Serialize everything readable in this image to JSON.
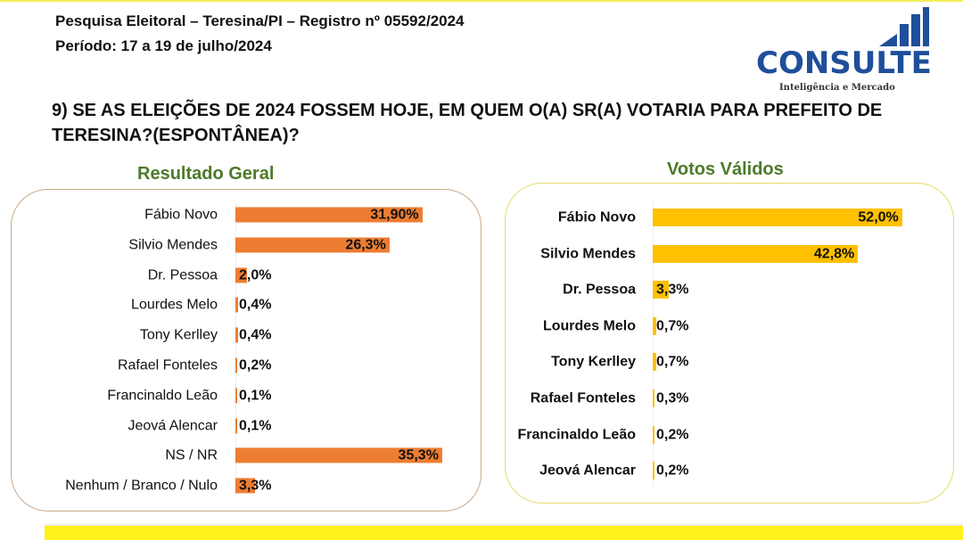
{
  "header": {
    "line1": "Pesquisa Eleitoral – Teresina/PI  – Registro nº 05592/2024",
    "line2": "Período: 17 a 19 de julho/2024"
  },
  "logo": {
    "name": "CONSULTE",
    "tagline": "Inteligência e Mercado"
  },
  "question": "9) SE AS ELEIÇÕES DE 2024 FOSSEM HOJE, EM QUEM O(A) SR(A) VOTARIA PARA PREFEITO DE TERESINA?(ESPONTÂNEA)?",
  "colors": {
    "general": "#ed7d31",
    "valid": "#ffc000",
    "title_green": "#4d7a2a"
  },
  "chart_data": [
    {
      "type": "bar",
      "orientation": "horizontal",
      "title": "Resultado Geral",
      "categories": [
        "Fábio Novo",
        "Silvio Mendes",
        "Dr. Pessoa",
        "Lourdes Melo",
        "Tony Kerlley",
        "Rafael Fonteles",
        "Francinaldo Leão",
        "Jeová Alencar",
        "NS / NR",
        "Nenhum / Branco / Nulo"
      ],
      "values": [
        31.9,
        26.3,
        2.0,
        0.4,
        0.4,
        0.2,
        0.1,
        0.1,
        35.3,
        3.3
      ],
      "labels": [
        "31,90%",
        "26,3%",
        "2,0%",
        "0,4%",
        "0,4%",
        "0,2%",
        "0,1%",
        "0,1%",
        "35,3%",
        "3,3%"
      ],
      "unit": "%"
    },
    {
      "type": "bar",
      "orientation": "horizontal",
      "title": "Votos Válidos",
      "categories": [
        "Fábio Novo",
        "Silvio Mendes",
        "Dr. Pessoa",
        "Lourdes Melo",
        "Tony Kerlley",
        "Rafael Fonteles",
        "Francinaldo Leão",
        "Jeová Alencar"
      ],
      "values": [
        52.0,
        42.8,
        3.3,
        0.7,
        0.7,
        0.3,
        0.2,
        0.2
      ],
      "labels": [
        "52,0%",
        "42,8%",
        "3,3%",
        "0,7%",
        "0,7%",
        "0,3%",
        "0,2%",
        "0,2%"
      ],
      "unit": "%"
    }
  ]
}
